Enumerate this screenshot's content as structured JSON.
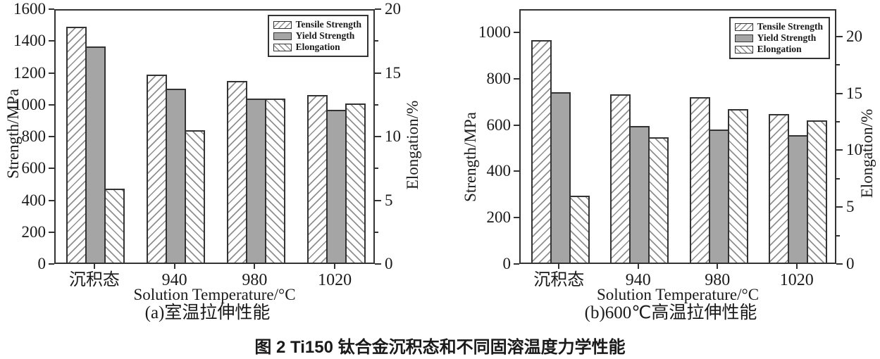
{
  "figure_caption": "图 2  Ti150 钛合金沉积态和不同固溶温度力学性能",
  "colors": {
    "background": "#ffffff",
    "axis": "#333333",
    "text": "#1a1a1a",
    "yield_bar_fill": "#a5a5a5",
    "hatch_line": "#8f8f8f"
  },
  "chart_data": [
    {
      "type": "bar",
      "title": "(a)室温拉伸性能",
      "xlabel": "Solution Temperature/°C",
      "categories": [
        "沉积态",
        "940",
        "980",
        "1020"
      ],
      "series": [
        {
          "name": "Tensile Strength",
          "axis": "left",
          "unit": "MPa",
          "pattern": "hatch-forward",
          "values": [
            1480,
            1180,
            1140,
            1050
          ]
        },
        {
          "name": "Yield Strength",
          "axis": "left",
          "unit": "MPa",
          "pattern": "solid-gray",
          "values": [
            1355,
            1090,
            1030,
            960
          ]
        },
        {
          "name": "Elongation",
          "axis": "right",
          "unit": "%",
          "pattern": "hatch-backward",
          "values": [
            5.8,
            10.4,
            12.9,
            12.5
          ]
        }
      ],
      "left_axis": {
        "label": "Strength/MPa",
        "ticks": [
          0,
          200,
          400,
          600,
          800,
          1000,
          1200,
          1400,
          1600
        ],
        "range": [
          0,
          1600
        ]
      },
      "right_axis": {
        "label": "Elongation/%",
        "ticks": [
          0,
          5,
          10,
          15,
          20
        ],
        "range": [
          0,
          20
        ],
        "minor_step": 2.5
      },
      "legend": [
        "Tensile Strength",
        "Yield Strength",
        "Elongation"
      ],
      "legend_position": "top-right",
      "grid": false
    },
    {
      "type": "bar",
      "title": "(b)600℃高温拉伸性能",
      "xlabel": "Solution Temperature/°C",
      "categories": [
        "沉积态",
        "940",
        "980",
        "1020"
      ],
      "series": [
        {
          "name": "Tensile Strength",
          "axis": "left",
          "unit": "MPa",
          "pattern": "hatch-forward",
          "values": [
            960,
            725,
            715,
            640
          ]
        },
        {
          "name": "Yield Strength",
          "axis": "left",
          "unit": "MPa",
          "pattern": "solid-gray",
          "values": [
            735,
            590,
            575,
            550
          ]
        },
        {
          "name": "Elongation",
          "axis": "right",
          "unit": "%",
          "pattern": "hatch-backward",
          "values": [
            5.9,
            11.0,
            13.5,
            12.5
          ]
        }
      ],
      "left_axis": {
        "label": "Strength/MPa",
        "ticks": [
          0,
          200,
          400,
          600,
          800,
          1000
        ],
        "range": [
          0,
          1100
        ]
      },
      "right_axis": {
        "label": "Elongation/%",
        "ticks": [
          0,
          5,
          10,
          15,
          20
        ],
        "range": [
          0,
          22.4
        ],
        "minor_step": 2.5
      },
      "legend": [
        "Tensile Strength",
        "Yield Strength",
        "Elongation"
      ],
      "legend_position": "top-right",
      "grid": false
    }
  ]
}
